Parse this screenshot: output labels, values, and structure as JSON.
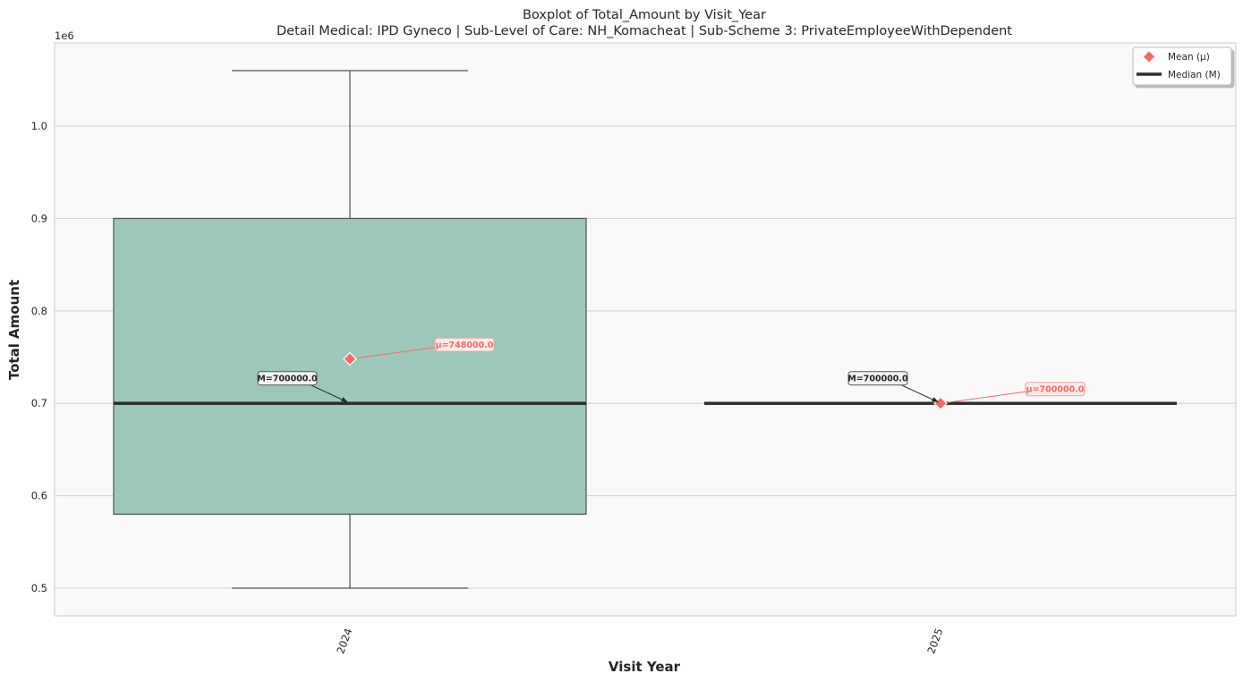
{
  "chart_data": {
    "type": "box",
    "title": "Boxplot of Total_Amount by Visit_Year",
    "subtitle": "Detail Medical: IPD Gyneco | Sub-Level of Care: NH_Komacheat | Sub-Scheme 3: PrivateEmployeeWithDependent",
    "xlabel": "Visit Year",
    "ylabel": "Total Amount",
    "y_offset_label": "1e6",
    "y_scale": 1000000,
    "ylim": [
      470000,
      1090000
    ],
    "yticks": [
      0.5,
      0.6,
      0.7,
      0.8,
      0.9,
      1.0
    ],
    "ytick_labels": [
      "0.5",
      "0.6",
      "0.7",
      "0.8",
      "0.9",
      "1.0"
    ],
    "grid": true,
    "legend_position": "top-right",
    "categories": [
      "2024",
      "2025"
    ],
    "boxes": [
      {
        "category": "2024",
        "whisker_low": 500000,
        "q1": 580000,
        "median": 700000,
        "q3": 900000,
        "whisker_high": 1060000,
        "mean": 748000,
        "median_label": "M=700000.0",
        "mean_label": "μ=748000.0"
      },
      {
        "category": "2025",
        "whisker_low": 700000,
        "q1": 700000,
        "median": 700000,
        "q3": 700000,
        "whisker_high": 700000,
        "mean": 700000,
        "median_label": "M=700000.0",
        "mean_label": "μ=700000.0"
      }
    ],
    "legend": [
      {
        "label": "Mean (μ)",
        "marker": "diamond"
      },
      {
        "label": "Median (M)",
        "marker": "line"
      }
    ]
  },
  "colors": {
    "box_fill": "#9bc8ba",
    "box_edge": "#4a5452",
    "median_line": "#2d3230",
    "mean_marker": "#f06b6b",
    "plot_bg": "#f9f9f9",
    "grid": "#cfcfcf"
  }
}
